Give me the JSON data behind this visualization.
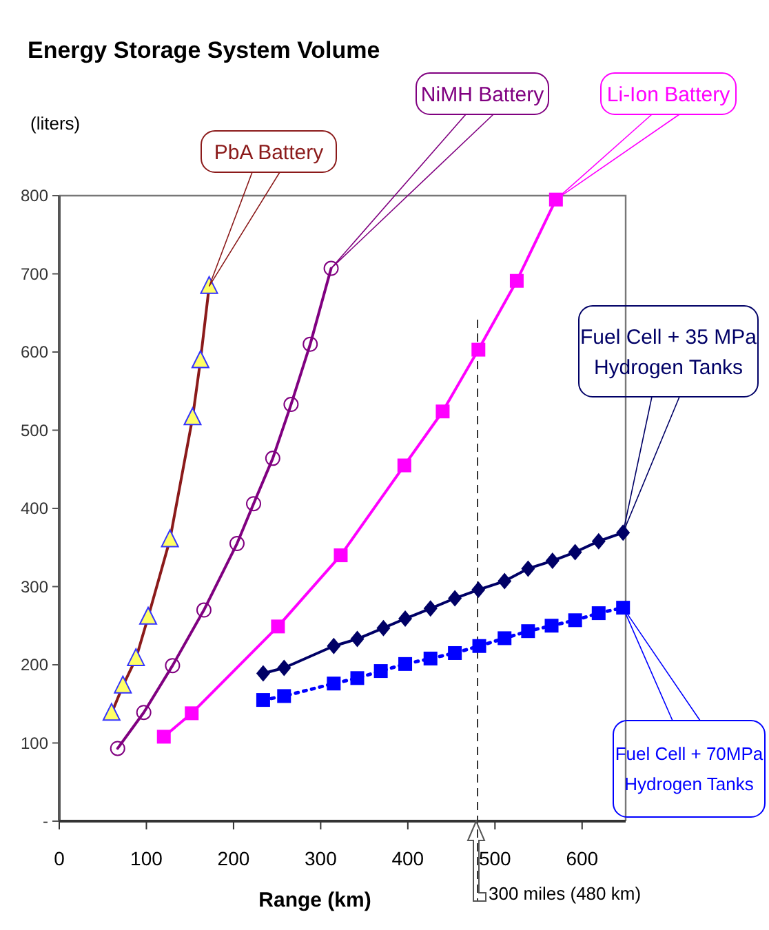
{
  "chart_data": {
    "type": "line",
    "title": "Energy Storage System Volume",
    "ylabel": "(liters)",
    "xlabel": "Range (km)",
    "xlim": [
      0,
      650
    ],
    "ylim": [
      0,
      800
    ],
    "xticks": [
      0,
      100,
      200,
      300,
      400,
      500,
      600
    ],
    "yticks": [
      {
        "value": 0,
        "label": "-"
      },
      100,
      200,
      300,
      400,
      500,
      600,
      700,
      800
    ],
    "grid": false,
    "series": [
      {
        "name": "PbA Battery",
        "color": "#8b1a1a",
        "marker": "triangle",
        "line_style": "solid",
        "x": [
          60,
          73,
          88,
          102,
          127,
          153,
          162,
          172
        ],
        "values": [
          138,
          173,
          208,
          261,
          360,
          516,
          589,
          684
        ]
      },
      {
        "name": "NiMH Battery",
        "color": "#800080",
        "marker": "circle",
        "line_style": "solid",
        "x": [
          67,
          97,
          130,
          166,
          204,
          223,
          245,
          266,
          288,
          312
        ],
        "values": [
          93,
          139,
          199,
          270,
          355,
          406,
          464,
          533,
          610,
          707
        ]
      },
      {
        "name": "Li-Ion Battery",
        "color": "#ff00ff",
        "marker": "square",
        "line_style": "solid",
        "x": [
          120,
          152,
          251,
          323,
          396,
          440,
          481,
          525,
          570
        ],
        "values": [
          108,
          138,
          249,
          340,
          455,
          524,
          603,
          691,
          795
        ]
      },
      {
        "name": "Fuel Cell + 35 MPa Hydrogen Tanks",
        "color": "#000066",
        "marker": "diamond",
        "line_style": "solid",
        "x": [
          234,
          258,
          315,
          342,
          372,
          397,
          426,
          454,
          481,
          511,
          538,
          566,
          592,
          619,
          647
        ],
        "values": [
          189,
          196,
          224,
          233,
          247,
          259,
          272,
          285,
          296,
          307,
          323,
          333,
          344,
          358,
          369
        ]
      },
      {
        "name": "Fuel Cell + 70MPa Hydrogen Tanks",
        "color": "#0000ff",
        "marker": "square",
        "line_style": "dotted",
        "x": [
          234,
          258,
          315,
          342,
          369,
          397,
          426,
          454,
          482,
          511,
          538,
          565,
          592,
          619,
          647
        ],
        "values": [
          155,
          160,
          176,
          183,
          192,
          201,
          208,
          215,
          224,
          234,
          243,
          250,
          257,
          266,
          273
        ]
      }
    ],
    "ref_lines": [
      {
        "axis": "x",
        "value": 480,
        "label": "300 miles (480 km)",
        "line_style": "dashed",
        "color": "#333333"
      }
    ]
  }
}
